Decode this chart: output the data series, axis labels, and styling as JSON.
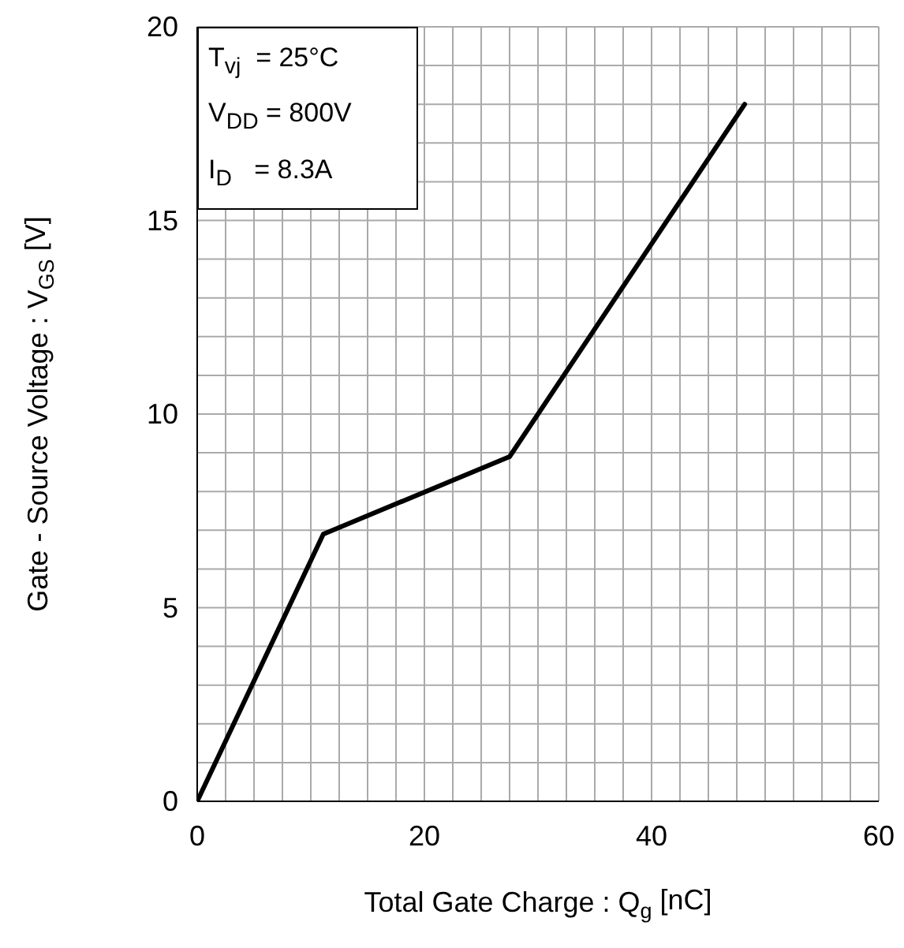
{
  "chart_data": {
    "type": "line",
    "xlabel": "Total Gate Charge : Q$_{g}$ [nC]",
    "ylabel": "Gate - Source Voltage : V$_{GS}$ [V]",
    "x": [
      0,
      11.1,
      27.5,
      48.2
    ],
    "series": [
      {
        "color": "#000000",
        "values": [
          0,
          6.9,
          8.9,
          18
        ]
      }
    ],
    "xlim": [
      0,
      60
    ],
    "ylim": [
      0,
      20
    ],
    "xticks": [
      0,
      {
        "value": 2.5,
        "label": null
      },
      {
        "value": 5,
        "label": null
      },
      {
        "value": 7.5,
        "label": null
      },
      {
        "value": 10,
        "label": null
      },
      {
        "value": 12.5,
        "label": null
      },
      {
        "value": 15,
        "label": null
      },
      {
        "value": 17.5,
        "label": null
      },
      20,
      {
        "value": 22.5,
        "label": null
      },
      {
        "value": 25,
        "label": null
      },
      {
        "value": 27.5,
        "label": null
      },
      {
        "value": 30,
        "label": null
      },
      {
        "value": 32.5,
        "label": null
      },
      {
        "value": 35,
        "label": null
      },
      {
        "value": 37.5,
        "label": null
      },
      40,
      {
        "value": 42.5,
        "label": null
      },
      {
        "value": 45,
        "label": null
      },
      {
        "value": 47.5,
        "label": null
      },
      {
        "value": 50,
        "label": null
      },
      {
        "value": 52.5,
        "label": null
      },
      {
        "value": 55,
        "label": null
      },
      {
        "value": 57.5,
        "label": null
      },
      60
    ],
    "yticks": [
      0,
      {
        "value": 1,
        "label": null
      },
      {
        "value": 2,
        "label": null
      },
      {
        "value": 3,
        "label": null
      },
      {
        "value": 4,
        "label": null
      },
      5,
      {
        "value": 6,
        "label": null
      },
      {
        "value": 7,
        "label": null
      },
      {
        "value": 8,
        "label": null
      },
      {
        "value": 9,
        "label": null
      },
      10,
      {
        "value": 11,
        "label": null
      },
      {
        "value": 12,
        "label": null
      },
      {
        "value": 13,
        "label": null
      },
      {
        "value": 14,
        "label": null
      },
      15,
      {
        "value": 16,
        "label": null
      },
      {
        "value": 17,
        "label": null
      },
      {
        "value": 18,
        "label": null
      },
      {
        "value": 19,
        "label": null
      },
      20
    ],
    "annotations": [
      "T$_{vj}$  = 25°C",
      "V$_{DD}$ = 800V",
      "I$_{D}$   = 8.3A"
    ],
    "grid": true,
    "marker": "none",
    "line_style": "solid"
  }
}
